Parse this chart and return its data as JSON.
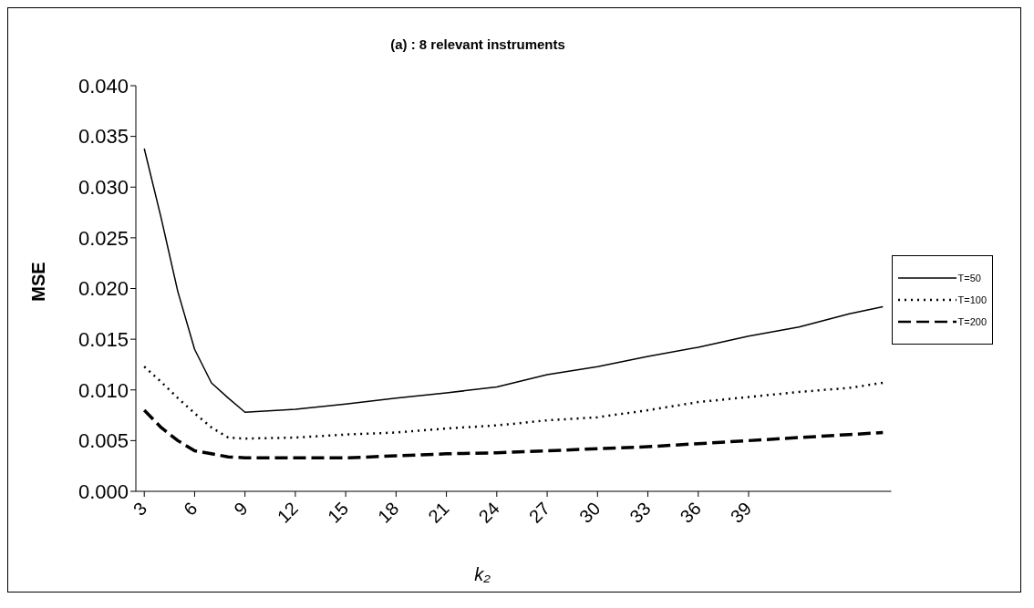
{
  "chart_data": {
    "type": "line",
    "title": "(a) : 8 relevant instruments",
    "xlabel": "k₂",
    "ylabel": "MSE",
    "x": [
      3,
      4,
      5,
      6,
      7,
      8,
      9,
      12,
      15,
      18,
      21,
      24,
      27,
      30,
      33,
      36,
      39,
      42,
      45,
      47
    ],
    "series": [
      {
        "name": "T=50",
        "color": "#000000",
        "line_style": "solid",
        "values": [
          0.0338,
          0.027,
          0.0197,
          0.014,
          0.0107,
          0.0092,
          0.0078,
          0.0081,
          0.0086,
          0.0092,
          0.0097,
          0.0103,
          0.0115,
          0.0123,
          0.0133,
          0.0142,
          0.0153,
          0.0162,
          0.0175,
          0.0182
        ]
      },
      {
        "name": "T=100",
        "color": "#000000",
        "line_style": "dotted",
        "values": [
          0.0123,
          0.0108,
          0.0092,
          0.0077,
          0.0063,
          0.0053,
          0.0052,
          0.0053,
          0.0056,
          0.0058,
          0.0062,
          0.0065,
          0.007,
          0.0073,
          0.008,
          0.0088,
          0.0093,
          0.0098,
          0.0102,
          0.0107
        ]
      },
      {
        "name": "T=200",
        "color": "#000000",
        "line_style": "dashed",
        "values": [
          0.008,
          0.0063,
          0.005,
          0.004,
          0.0037,
          0.0034,
          0.0033,
          0.0033,
          0.0033,
          0.0035,
          0.0037,
          0.0038,
          0.004,
          0.0042,
          0.0044,
          0.0047,
          0.005,
          0.0053,
          0.0056,
          0.0058
        ]
      }
    ],
    "xlim": [
      2.5,
      47.5
    ],
    "xticks": [
      3,
      6,
      9,
      12,
      15,
      18,
      21,
      24,
      27,
      30,
      33,
      36,
      39
    ],
    "ylim": [
      0,
      0.04
    ],
    "yticks": [
      {
        "value": 0,
        "label": "0.000"
      },
      {
        "value": 0.005,
        "label": "0.005"
      },
      {
        "value": 0.01,
        "label": "0.010"
      },
      {
        "value": 0.015,
        "label": "0.015"
      },
      {
        "value": 0.02,
        "label": "0.020"
      },
      {
        "value": 0.025,
        "label": "0.025"
      },
      {
        "value": 0.03,
        "label": "0.030"
      },
      {
        "value": 0.035,
        "label": "0.035"
      },
      {
        "value": 0.04,
        "label": "0.040"
      }
    ],
    "grid": false,
    "legend": "right",
    "marker": "none"
  }
}
